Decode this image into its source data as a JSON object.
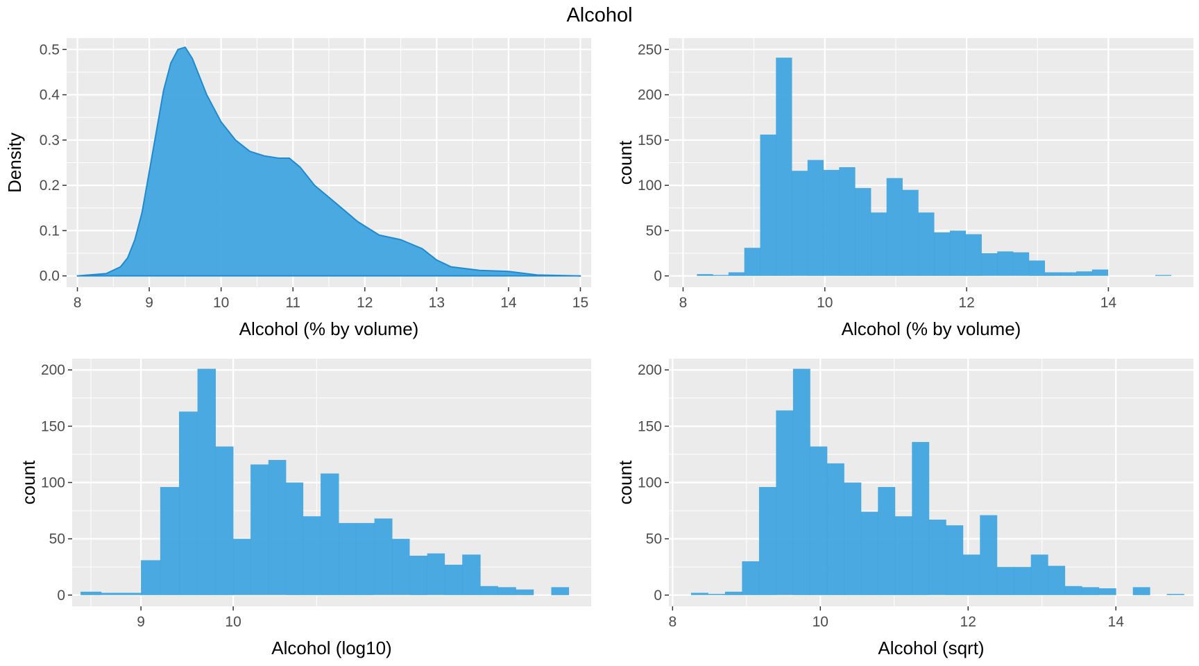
{
  "page": {
    "title": "Alcohol"
  },
  "style": {
    "panel_bg": "#ebebeb",
    "grid_color": "#ffffff",
    "fill_color": "#3ba3de",
    "line_color": "#1f8ad0",
    "tick_text_color": "#4d4d4d",
    "axis_title_color": "#000000"
  },
  "chart_data": [
    {
      "id": "density",
      "type": "area",
      "xlabel": "Alcohol (% by volume)",
      "ylabel": "Density",
      "xlim": [
        7.85,
        15.15
      ],
      "ylim": [
        -0.025,
        0.525
      ],
      "xticks": [
        8,
        9,
        10,
        11,
        12,
        13,
        14,
        15
      ],
      "xtick_labels": [
        "8",
        "9",
        "10",
        "11",
        "12",
        "13",
        "14",
        "15"
      ],
      "yticks": [
        0.0,
        0.1,
        0.2,
        0.3,
        0.4,
        0.5
      ],
      "ytick_labels": [
        "0.0",
        "0.1",
        "0.2",
        "0.3",
        "0.4",
        "0.5"
      ],
      "grid": true,
      "x": [
        8.0,
        8.4,
        8.6,
        8.7,
        8.8,
        8.9,
        9.0,
        9.1,
        9.2,
        9.3,
        9.4,
        9.5,
        9.6,
        9.7,
        9.8,
        9.9,
        10.0,
        10.2,
        10.4,
        10.6,
        10.8,
        10.95,
        11.1,
        11.3,
        11.6,
        11.9,
        12.2,
        12.5,
        12.8,
        13.0,
        13.2,
        13.6,
        14.0,
        14.4,
        15.0
      ],
      "y": [
        0.0,
        0.005,
        0.02,
        0.04,
        0.08,
        0.14,
        0.23,
        0.32,
        0.41,
        0.47,
        0.5,
        0.505,
        0.48,
        0.44,
        0.4,
        0.37,
        0.34,
        0.3,
        0.275,
        0.265,
        0.26,
        0.26,
        0.24,
        0.2,
        0.16,
        0.12,
        0.09,
        0.08,
        0.06,
        0.035,
        0.02,
        0.012,
        0.01,
        0.002,
        0.0
      ]
    },
    {
      "id": "hist-raw",
      "type": "bar",
      "xlabel": "Alcohol (% by volume)",
      "ylabel": "count",
      "xlim": [
        7.8,
        15.2
      ],
      "ylim": [
        -12.5,
        262.5
      ],
      "xticks": [
        8,
        10,
        12,
        14
      ],
      "xtick_labels": [
        "8",
        "10",
        "12",
        "14"
      ],
      "yticks": [
        0,
        50,
        100,
        150,
        200,
        250
      ],
      "ytick_labels": [
        "0",
        "50",
        "100",
        "150",
        "200",
        "250"
      ],
      "grid": true,
      "bin_width": 0.223,
      "bin_starts": [
        8.195,
        8.418,
        8.641,
        8.864,
        9.087,
        9.31,
        9.533,
        9.756,
        9.979,
        10.202,
        10.425,
        10.648,
        10.871,
        11.094,
        11.317,
        11.54,
        11.763,
        11.986,
        12.209,
        12.432,
        12.655,
        12.878,
        13.101,
        13.324,
        13.547,
        13.77,
        13.993,
        14.216,
        14.439,
        14.662
      ],
      "values": [
        2,
        1,
        4,
        31,
        156,
        241,
        116,
        128,
        117,
        120,
        97,
        70,
        108,
        95,
        70,
        48,
        50,
        46,
        25,
        27,
        26,
        17,
        4,
        4,
        5,
        7,
        0,
        0,
        0,
        1
      ]
    },
    {
      "id": "hist-log10",
      "type": "bar",
      "xlabel": "Alcohol (log10)",
      "ylabel": "count",
      "xlim": [
        8.32,
        15.05
      ],
      "ylim": [
        -10,
        210
      ],
      "xticks": [
        9,
        10
      ],
      "xtick_labels": [
        "9",
        "10"
      ],
      "minor_xticks": [
        8.5,
        11
      ],
      "yticks": [
        0,
        50,
        100,
        150,
        200
      ],
      "ytick_labels": [
        "0",
        "50",
        "100",
        "150",
        "200"
      ],
      "grid": true,
      "log10_axis": true,
      "bin_edges": [
        8.4,
        8.6,
        8.8,
        9.0,
        9.2,
        9.4,
        9.6,
        9.8,
        10.0,
        10.2,
        10.41,
        10.62,
        10.83,
        11.05,
        11.28,
        11.51,
        11.75,
        11.99,
        12.23,
        12.48,
        12.73,
        12.99,
        13.26,
        13.53,
        13.81,
        14.09,
        14.38,
        14.67,
        14.97
      ],
      "values": [
        3,
        2,
        2,
        31,
        96,
        163,
        201,
        132,
        50,
        116,
        120,
        100,
        70,
        108,
        64,
        64,
        68,
        50,
        35,
        37,
        27,
        36,
        8,
        7,
        5,
        0,
        7,
        0
      ]
    },
    {
      "id": "hist-sqrt",
      "type": "bar",
      "xlabel": "Alcohol (sqrt)",
      "ylabel": "count",
      "xlim": [
        7.95,
        15.05
      ],
      "ylim": [
        -10,
        210
      ],
      "xticks": [
        8,
        10,
        12,
        14
      ],
      "xtick_labels": [
        "8",
        "10",
        "12",
        "14"
      ],
      "yticks": [
        0,
        50,
        100,
        150,
        200
      ],
      "ytick_labels": [
        "0",
        "50",
        "100",
        "150",
        "200"
      ],
      "grid": true,
      "bin_width": 0.23,
      "bin_starts": [
        8.25,
        8.48,
        8.71,
        8.94,
        9.17,
        9.4,
        9.63,
        9.86,
        10.09,
        10.32,
        10.55,
        10.78,
        11.01,
        11.24,
        11.47,
        11.7,
        11.93,
        12.16,
        12.39,
        12.62,
        12.85,
        13.08,
        13.31,
        13.54,
        13.77,
        14.0,
        14.23,
        14.46,
        14.69
      ],
      "values": [
        2,
        1,
        3,
        30,
        96,
        164,
        201,
        132,
        117,
        100,
        74,
        96,
        70,
        136,
        67,
        62,
        36,
        71,
        25,
        25,
        36,
        26,
        8,
        7,
        6,
        0,
        7,
        0,
        1
      ]
    }
  ]
}
